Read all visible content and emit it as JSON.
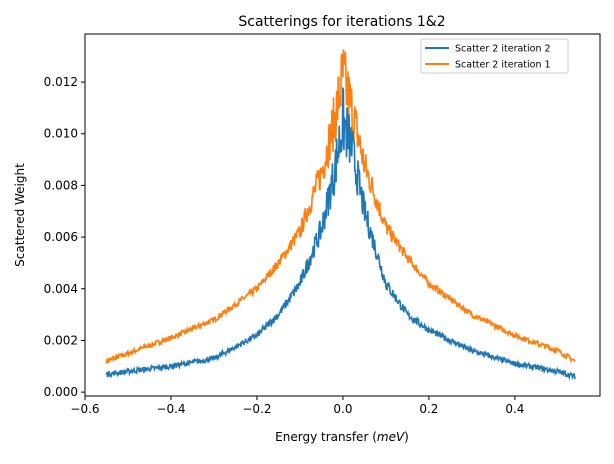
{
  "chart_data": {
    "type": "line",
    "title": "Scatterings for iterations 1&2",
    "xlabel": "Energy transfer (meV)",
    "xlabel_plain": "Energy transfer (",
    "xlabel_italic": "meV",
    "xlabel_close": ")",
    "ylabel": "Scattered Weight",
    "xlim": [
      -0.6,
      0.598
    ],
    "ylim": [
      -0.00015,
      0.01386
    ],
    "xticks": [
      -0.6,
      -0.4,
      -0.2,
      0.0,
      0.2,
      0.4
    ],
    "xtick_labels": [
      "−0.6",
      "−0.4",
      "−0.2",
      "0.0",
      "0.2",
      "0.4"
    ],
    "yticks": [
      0,
      0.002,
      0.004,
      0.006,
      0.008,
      0.01,
      0.012
    ],
    "ytick_labels": [
      "0.000",
      "0.002",
      "0.004",
      "0.006",
      "0.008",
      "0.010",
      "0.012"
    ],
    "grid": false,
    "legend_position": "top-right",
    "series": [
      {
        "name": "Scatter 2 iteration 2",
        "color": "#1f77b4",
        "x": [
          -0.55,
          -0.5,
          -0.4,
          -0.3,
          -0.2,
          -0.15,
          -0.1,
          -0.05,
          -0.02,
          0.0,
          0.02,
          0.05,
          0.1,
          0.15,
          0.2,
          0.3,
          0.4,
          0.5,
          0.54
        ],
        "y": [
          0.0007,
          0.0008,
          0.001,
          0.0013,
          0.0022,
          0.003,
          0.0042,
          0.0063,
          0.0085,
          0.0105,
          0.0095,
          0.007,
          0.0042,
          0.003,
          0.0024,
          0.0016,
          0.0011,
          0.0008,
          0.0006
        ]
      },
      {
        "name": "Scatter 2 iteration 1",
        "color": "#ff7f0e",
        "x": [
          -0.55,
          -0.5,
          -0.4,
          -0.3,
          -0.2,
          -0.15,
          -0.1,
          -0.05,
          -0.02,
          0.0,
          0.02,
          0.05,
          0.1,
          0.15,
          0.2,
          0.3,
          0.4,
          0.5,
          0.54
        ],
        "y": [
          0.0012,
          0.0015,
          0.0021,
          0.0028,
          0.004,
          0.005,
          0.0062,
          0.0085,
          0.0105,
          0.0122,
          0.011,
          0.0088,
          0.0064,
          0.0052,
          0.0042,
          0.003,
          0.0022,
          0.0016,
          0.0012
        ]
      }
    ]
  }
}
